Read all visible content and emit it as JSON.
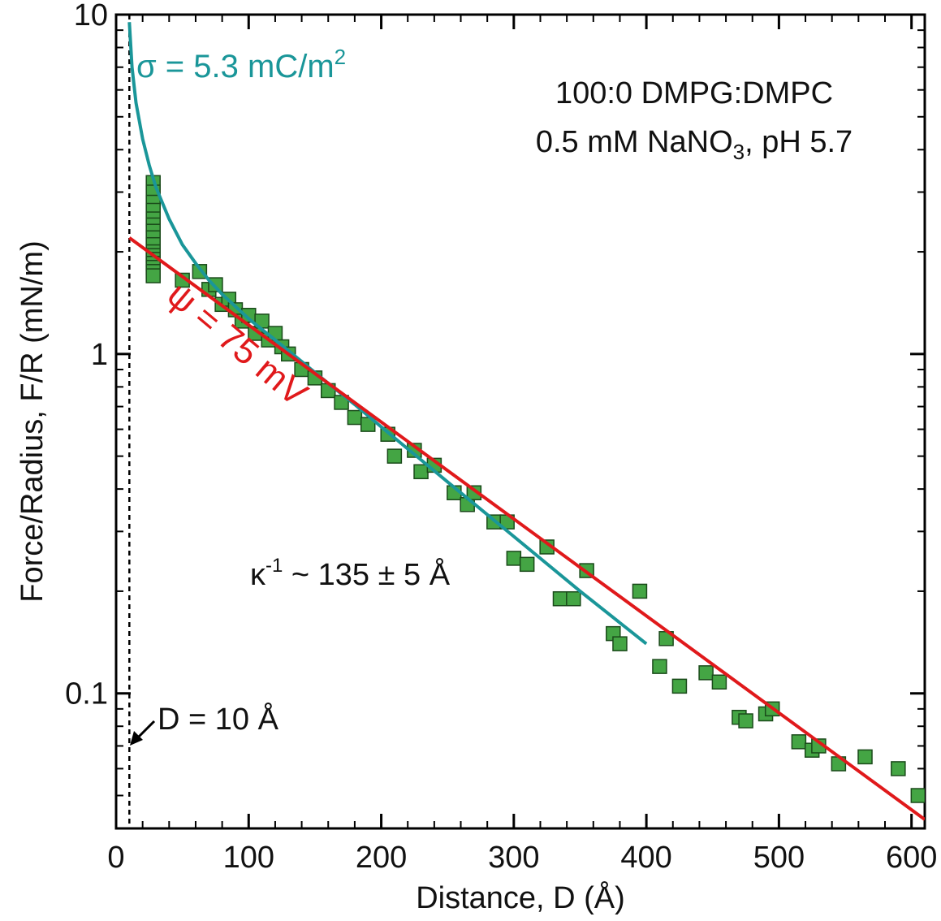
{
  "chart_data": {
    "type": "scatter",
    "xlabel": "Distance, D (Å)",
    "ylabel": "Force/Radius, F/R (mN/m)",
    "xlim": [
      0,
      610
    ],
    "ylim": [
      0.04,
      10
    ],
    "yscale": "log",
    "xticks": [
      0,
      100,
      200,
      300,
      400,
      500,
      600
    ],
    "xtick_labels": [
      "0",
      "100",
      "200",
      "300",
      "400",
      "500",
      "600"
    ],
    "yticks": [
      0.1,
      1,
      10
    ],
    "ytick_labels": [
      "0.1",
      "1",
      "10"
    ],
    "grid": false,
    "annotations": {
      "sigma_label": "σ = 5.3 mC/m",
      "sigma_sup": "2",
      "psi_label": "ψ = 75 mV",
      "system_line1": "100:0 DMPG:DMPC",
      "system_line2_a": "0.5 mM NaNO",
      "system_line2_sub": "3",
      "system_line2_b": ", pH 5.7",
      "kappa_a": "κ",
      "kappa_sup": "-1",
      "kappa_b": " ~ 135 ± 5 Å",
      "d10_label": "D = 10 Å"
    },
    "colors": {
      "data_fill": "#44a544",
      "data_edge": "#1a4a1a",
      "sigma_curve": "#1a9699",
      "psi_line": "#e0191b",
      "axis": "#000000"
    },
    "reference_line": {
      "name": "D = 10 Å",
      "x": 10
    },
    "series": [
      {
        "kind": "points",
        "marker": "square",
        "x": [
          28,
          28,
          28,
          28,
          28,
          28,
          28,
          28,
          28,
          28,
          28,
          28,
          28,
          28,
          28,
          28,
          50,
          63,
          70,
          75,
          80,
          85,
          90,
          95,
          100,
          105,
          110,
          115,
          120,
          125,
          130,
          140,
          150,
          160,
          170,
          180,
          190,
          205,
          210,
          225,
          230,
          240,
          255,
          265,
          270,
          285,
          295,
          300,
          310,
          325,
          335,
          345,
          355,
          375,
          380,
          395,
          410,
          415,
          425,
          445,
          455,
          470,
          475,
          490,
          495,
          515,
          525,
          530,
          545,
          565,
          590,
          605
        ],
        "y": [
          3.2,
          3.0,
          2.8,
          2.65,
          2.5,
          2.4,
          2.3,
          2.2,
          2.1,
          2.0,
          1.95,
          1.9,
          1.85,
          1.8,
          1.75,
          1.7,
          1.65,
          1.75,
          1.55,
          1.6,
          1.4,
          1.45,
          1.35,
          1.25,
          1.3,
          1.15,
          1.25,
          1.1,
          1.15,
          1.05,
          1.0,
          0.9,
          0.85,
          0.78,
          0.72,
          0.65,
          0.62,
          0.58,
          0.5,
          0.52,
          0.45,
          0.47,
          0.39,
          0.36,
          0.39,
          0.32,
          0.32,
          0.25,
          0.24,
          0.27,
          0.19,
          0.19,
          0.23,
          0.15,
          0.14,
          0.2,
          0.12,
          0.145,
          0.105,
          0.115,
          0.108,
          0.085,
          0.083,
          0.087,
          0.09,
          0.072,
          0.068,
          0.07,
          0.062,
          0.065,
          0.06,
          0.05
        ]
      },
      {
        "kind": "line",
        "label": "σ = 5.3 mC/m²",
        "x": [
          10,
          12,
          15,
          20,
          25,
          30,
          40,
          50,
          60,
          70,
          80,
          90,
          100,
          120,
          140,
          160,
          180,
          200,
          250,
          300,
          350,
          400
        ],
        "y": [
          9.5,
          7.0,
          5.5,
          4.3,
          3.6,
          3.1,
          2.5,
          2.1,
          1.85,
          1.65,
          1.5,
          1.38,
          1.27,
          1.1,
          0.95,
          0.82,
          0.71,
          0.61,
          0.42,
          0.29,
          0.2,
          0.14
        ]
      },
      {
        "kind": "line",
        "label": "ψ = 75 mV",
        "x": [
          10,
          610
        ],
        "y": [
          2.2,
          0.0425
        ]
      }
    ]
  }
}
